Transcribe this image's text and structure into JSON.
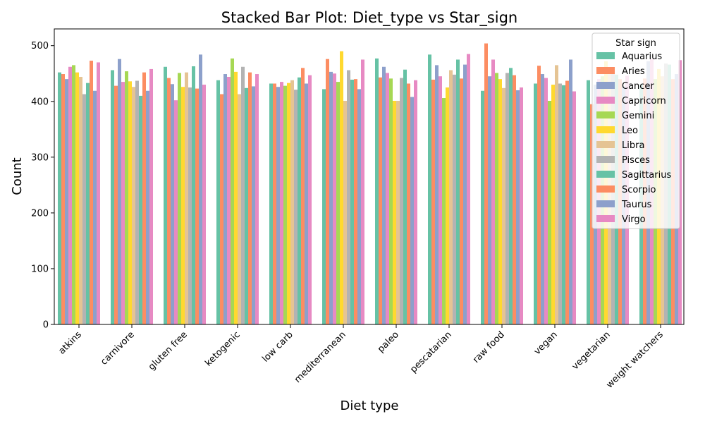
{
  "chart_data": {
    "type": "bar",
    "title": "Stacked Bar Plot: Diet_type vs Star_sign",
    "xlabel": "Diet type",
    "ylabel": "Count",
    "ylim": [
      0,
      530
    ],
    "yticks": [
      0,
      100,
      200,
      300,
      400,
      500
    ],
    "grid": false,
    "legend_title": "Star sign",
    "legend_position": "top-right",
    "categories": [
      "atkins",
      "carnivore",
      "gluten free",
      "ketogenic",
      "low carb",
      "mediterranean",
      "paleo",
      "pescatarian",
      "raw food",
      "vegan",
      "vegetarian",
      "weight watchers"
    ],
    "series": [
      {
        "name": "Aquarius",
        "color": "#66c2a5",
        "values": [
          452,
          456,
          462,
          438,
          432,
          422,
          477,
          484,
          419,
          432,
          438,
          431
        ]
      },
      {
        "name": "Aries",
        "color": "#fc8d62",
        "values": [
          449,
          428,
          442,
          413,
          432,
          476,
          443,
          439,
          504,
          464,
          395,
          441
        ]
      },
      {
        "name": "Cancer",
        "color": "#8da0cb",
        "values": [
          440,
          476,
          431,
          449,
          426,
          453,
          462,
          465,
          445,
          449,
          430,
          472
        ]
      },
      {
        "name": "Capricorn",
        "color": "#e78ac3",
        "values": [
          462,
          435,
          402,
          444,
          435,
          450,
          451,
          445,
          475,
          442,
          440,
          476
        ]
      },
      {
        "name": "Gemini",
        "color": "#a6d854",
        "values": [
          465,
          454,
          451,
          477,
          428,
          435,
          441,
          406,
          451,
          401,
          445,
          440
        ]
      },
      {
        "name": "Leo",
        "color": "#ffd92f",
        "values": [
          452,
          436,
          426,
          453,
          433,
          490,
          401,
          425,
          440,
          430,
          472,
          458
        ]
      },
      {
        "name": "Libra",
        "color": "#e5c494",
        "values": [
          444,
          426,
          452,
          413,
          438,
          401,
          401,
          456,
          424,
          465,
          450,
          445
        ]
      },
      {
        "name": "Pisces",
        "color": "#b3b3b3",
        "values": [
          413,
          437,
          425,
          462,
          421,
          456,
          442,
          448,
          451,
          432,
          453,
          468
        ]
      },
      {
        "name": "Sagittarius",
        "color": "#66c2a5",
        "values": [
          433,
          410,
          463,
          424,
          443,
          439,
          457,
          475,
          460,
          429,
          448,
          466
        ]
      },
      {
        "name": "Scorpio",
        "color": "#fc8d62",
        "values": [
          473,
          452,
          423,
          452,
          460,
          440,
          432,
          441,
          447,
          437,
          440,
          440
        ]
      },
      {
        "name": "Taurus",
        "color": "#8da0cb",
        "values": [
          419,
          419,
          484,
          427,
          432,
          422,
          408,
          466,
          420,
          475,
          427,
          449
        ]
      },
      {
        "name": "Virgo",
        "color": "#e78ac3",
        "values": [
          470,
          458,
          430,
          449,
          447,
          475,
          438,
          485,
          425,
          418,
          446,
          474
        ]
      }
    ]
  }
}
